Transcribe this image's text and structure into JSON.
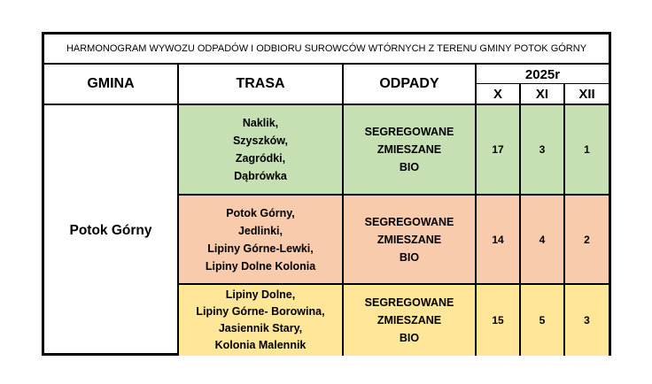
{
  "title": "HARMONOGRAM WYWOZU ODPADÓW I ODBIORU SUROWCÓW WTÓRNYCH Z TERENU GMINY POTOK GÓRNY",
  "headers": {
    "gmina": "GMINA",
    "trasa": "TRASA",
    "odpady": "ODPADY",
    "year": "2025r",
    "months": [
      "X",
      "XI",
      "XII"
    ]
  },
  "gmina_name": "Potok Górny",
  "routes": [
    {
      "places": [
        "Naklik,",
        "Szyszków,",
        "Zagródki,",
        "Dąbrówka"
      ],
      "waste": [
        "SEGREGOWANE",
        "ZMIESZANE",
        "BIO"
      ],
      "dates": [
        "17",
        "3",
        "1"
      ],
      "color": "#c6e0b4"
    },
    {
      "places": [
        "Potok Górny,",
        "Jedlinki,",
        "Lipiny Górne-Lewki,",
        "Lipiny Dolne Kolonia"
      ],
      "waste": [
        "SEGREGOWANE",
        "ZMIESZANE",
        "BIO"
      ],
      "dates": [
        "14",
        "4",
        "2"
      ],
      "color": "#f8cbad"
    },
    {
      "places": [
        "Lipiny Dolne,",
        "Lipiny Górne- Borowina,",
        "Jasiennik Stary,",
        "Kolonia Malennik"
      ],
      "waste": [
        "SEGREGOWANE",
        "ZMIESZANE",
        "BIO"
      ],
      "dates": [
        "15",
        "5",
        "3"
      ],
      "color": "#ffe699"
    }
  ]
}
